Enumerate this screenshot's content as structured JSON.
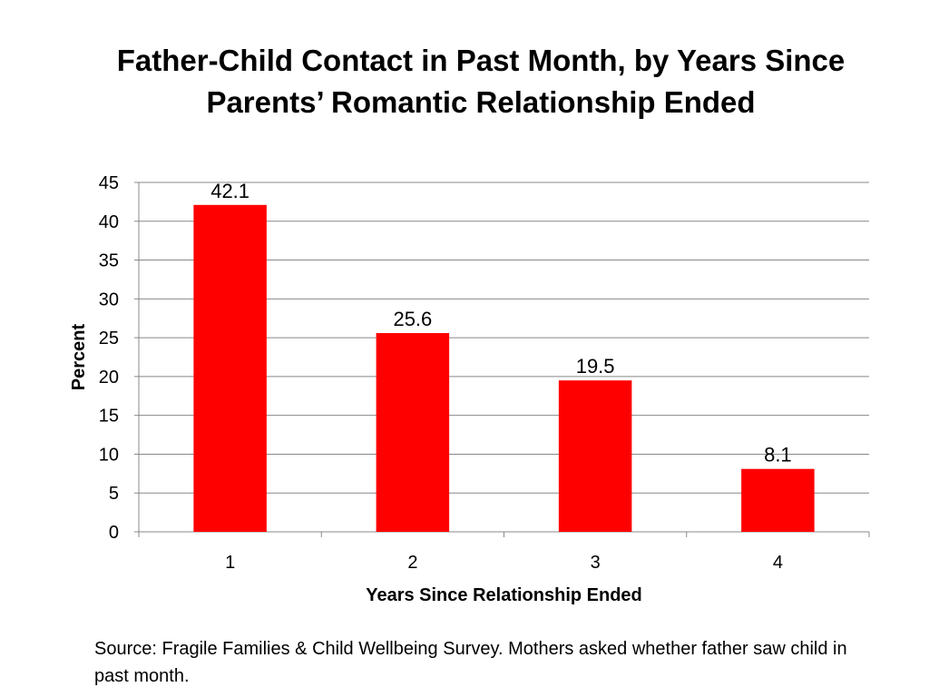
{
  "title_lines": [
    "Father-Child Contact in Past Month, by Years Since",
    "Parents’ Romantic Relationship Ended"
  ],
  "source_note": "Source: Fragile Families & Child Wellbeing Survey. Mothers asked whether father saw child in past month.",
  "chart_data": {
    "type": "bar",
    "title": "Father-Child Contact in Past Month, by Years Since Parents’ Romantic Relationship Ended",
    "categories": [
      "1",
      "2",
      "3",
      "4"
    ],
    "values": [
      42.1,
      25.6,
      19.5,
      8.1
    ],
    "value_labels": [
      "42.1",
      "25.6",
      "19.5",
      "8.1"
    ],
    "xlabel": "Years Since Relationship Ended",
    "ylabel": "Percent",
    "ylim": [
      0,
      45
    ],
    "yticks": [
      "0",
      "5",
      "10",
      "15",
      "20",
      "25",
      "30",
      "35",
      "40",
      "45"
    ],
    "grid": true,
    "legend": "none",
    "bar_color": "#ff0000"
  }
}
